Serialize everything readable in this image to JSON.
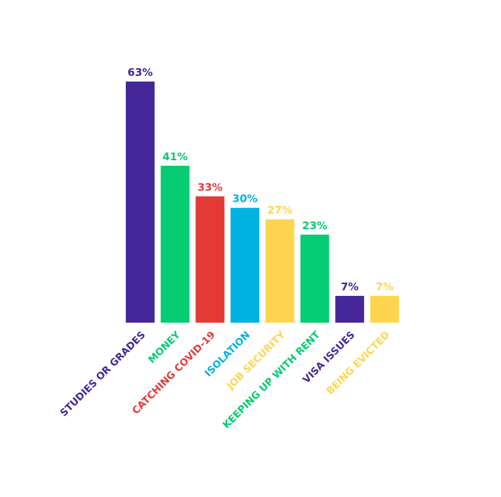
{
  "chart_data": {
    "type": "bar",
    "categories": [
      "STUDIES OR GRADES",
      "MONEY",
      "CATCHING COVID-19",
      "ISOLATION",
      "JOB SECURITY",
      "KEEPING UP WITH RENT",
      "VISA ISSUES",
      "BEING EVICTED"
    ],
    "values": [
      63,
      41,
      33,
      30,
      27,
      23,
      7,
      7
    ],
    "value_labels": [
      "63%",
      "41%",
      "33%",
      "30%",
      "27%",
      "23%",
      "7%",
      "7%"
    ],
    "colors": [
      "#46279a",
      "#05cc72",
      "#e43a36",
      "#00b2e2",
      "#ffd54f",
      "#05cc72",
      "#46279a",
      "#ffd54f"
    ]
  }
}
